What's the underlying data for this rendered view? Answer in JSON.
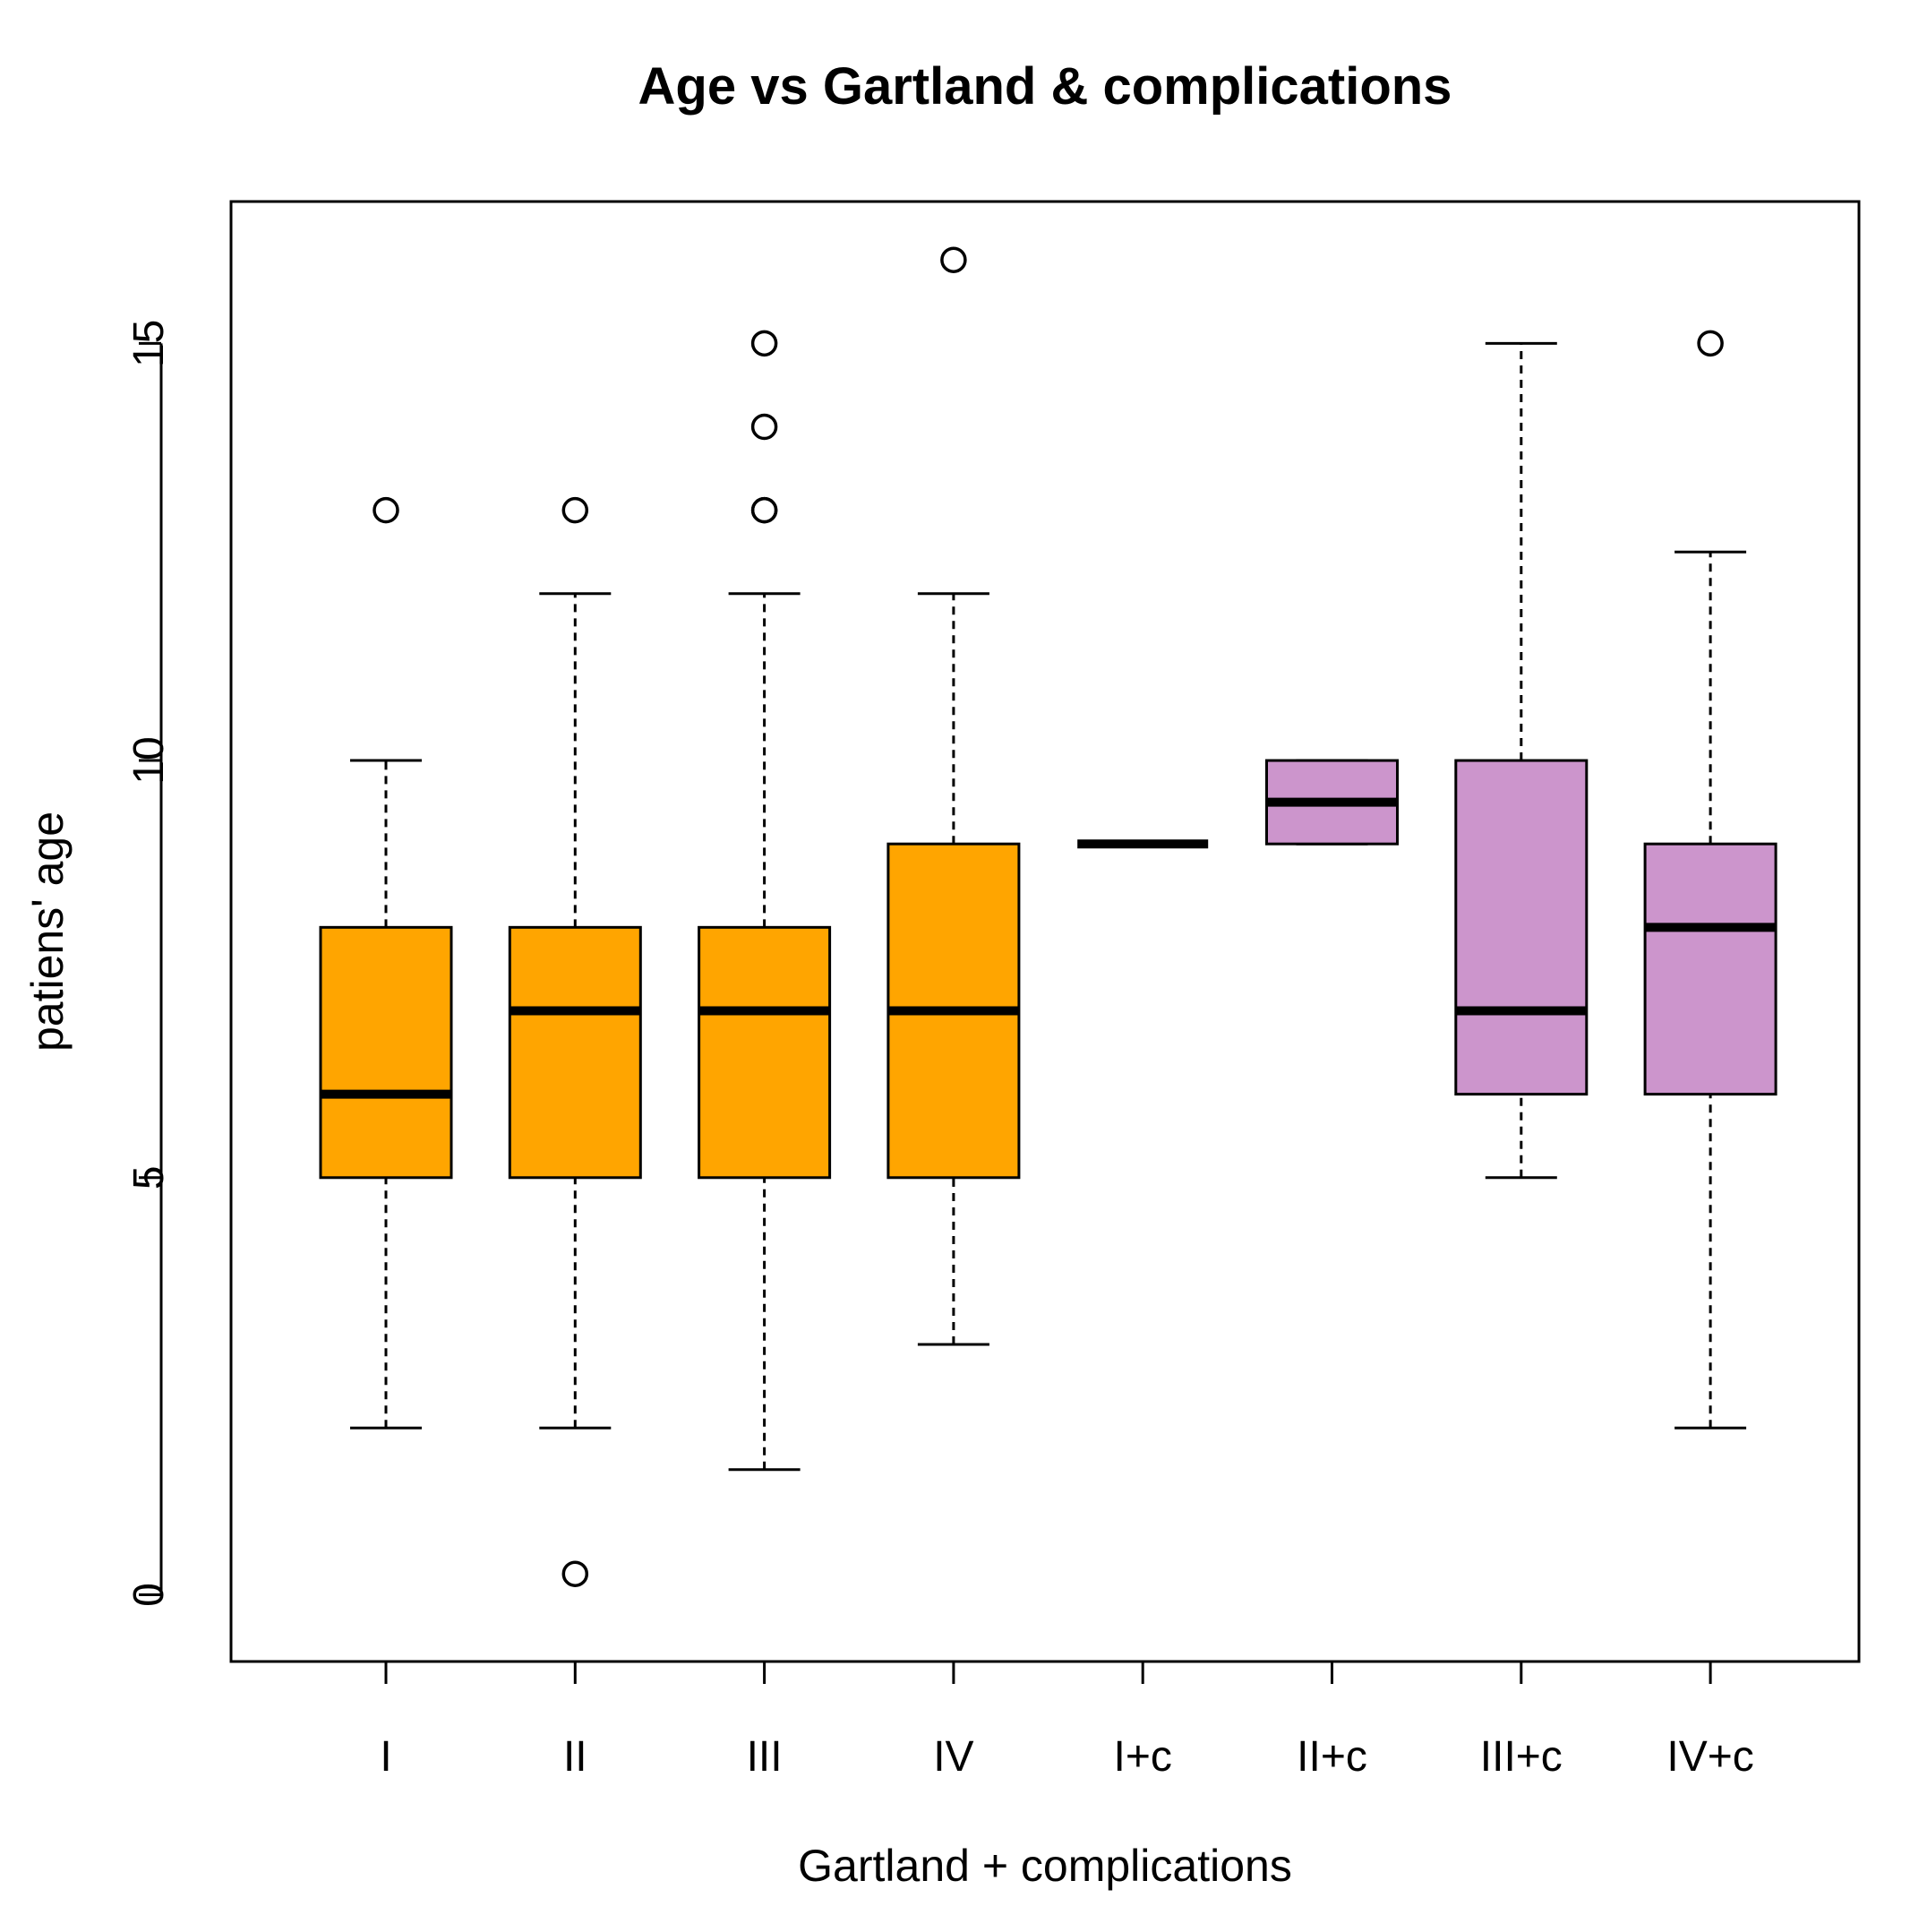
{
  "chart_data": {
    "type": "boxplot",
    "title": "Age vs Gartland & complications",
    "xlabel": "Gartland + complications",
    "ylabel": "patiens' age",
    "ylim": [
      -0.8,
      16.7
    ],
    "yticks": [
      0,
      5,
      10,
      15
    ],
    "ytick_labels": [
      "0",
      "5",
      "10",
      "15"
    ],
    "grid": false,
    "colors": {
      "without_complications": "#FFA500",
      "with_complications": "#CC95CC",
      "stroke": "#000000",
      "background": "#ffffff"
    },
    "groups": [
      {
        "label": "I",
        "color_key": "without_complications",
        "whisker_low": 2,
        "q1": 5,
        "median": 6,
        "q3": 8,
        "whisker_high": 10,
        "outliers": [
          13
        ]
      },
      {
        "label": "II",
        "color_key": "without_complications",
        "whisker_low": 2,
        "q1": 5,
        "median": 7,
        "q3": 8,
        "whisker_high": 12,
        "outliers": [
          13,
          0.25
        ]
      },
      {
        "label": "III",
        "color_key": "without_complications",
        "whisker_low": 1.5,
        "q1": 5,
        "median": 7,
        "q3": 8,
        "whisker_high": 12,
        "outliers": [
          15,
          14,
          13,
          13
        ]
      },
      {
        "label": "IV",
        "color_key": "without_complications",
        "whisker_low": 3,
        "q1": 5,
        "median": 7,
        "q3": 9,
        "whisker_high": 12,
        "outliers": [
          16
        ]
      },
      {
        "label": "I+c",
        "color_key": "with_complications",
        "whisker_low": 9,
        "q1": 9,
        "median": 9,
        "q3": 9,
        "whisker_high": 9,
        "outliers": []
      },
      {
        "label": "II+c",
        "color_key": "with_complications",
        "whisker_low": 9,
        "q1": 9,
        "median": 9.5,
        "q3": 10,
        "whisker_high": 10,
        "outliers": []
      },
      {
        "label": "III+c",
        "color_key": "with_complications",
        "whisker_low": 5,
        "q1": 6,
        "median": 7,
        "q3": 10,
        "whisker_high": 15,
        "outliers": []
      },
      {
        "label": "IV+c",
        "color_key": "with_complications",
        "whisker_low": 2,
        "q1": 6,
        "median": 8,
        "q3": 9,
        "whisker_high": 12.5,
        "outliers": [
          15
        ]
      }
    ]
  }
}
